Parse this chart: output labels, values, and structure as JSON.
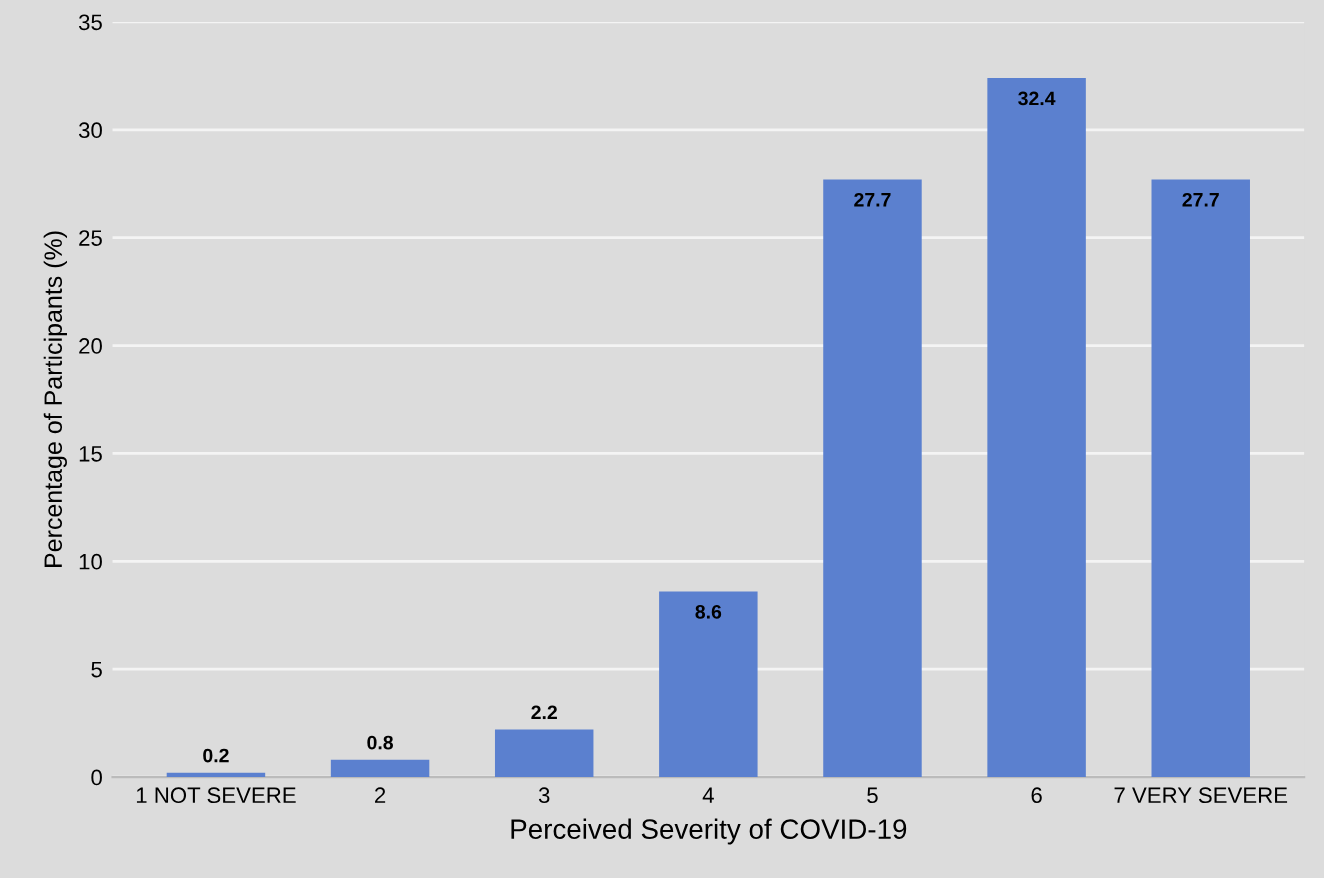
{
  "chart_data": {
    "type": "bar",
    "xlabel": "Perceived Severity of COVID-19",
    "ylabel": "Percentage of Participants (%)",
    "categories": [
      "1 NOT SEVERE",
      "2",
      "3",
      "4",
      "5",
      "6",
      "7 VERY SEVERE"
    ],
    "values": [
      0.2,
      0.8,
      2.2,
      8.6,
      27.7,
      32.4,
      27.7
    ],
    "color": "#5b80cf",
    "ylim": [
      0,
      35
    ],
    "yticks": [
      0,
      5,
      10,
      15,
      20,
      25,
      30,
      35
    ],
    "grid": "y",
    "data_labels": true
  }
}
